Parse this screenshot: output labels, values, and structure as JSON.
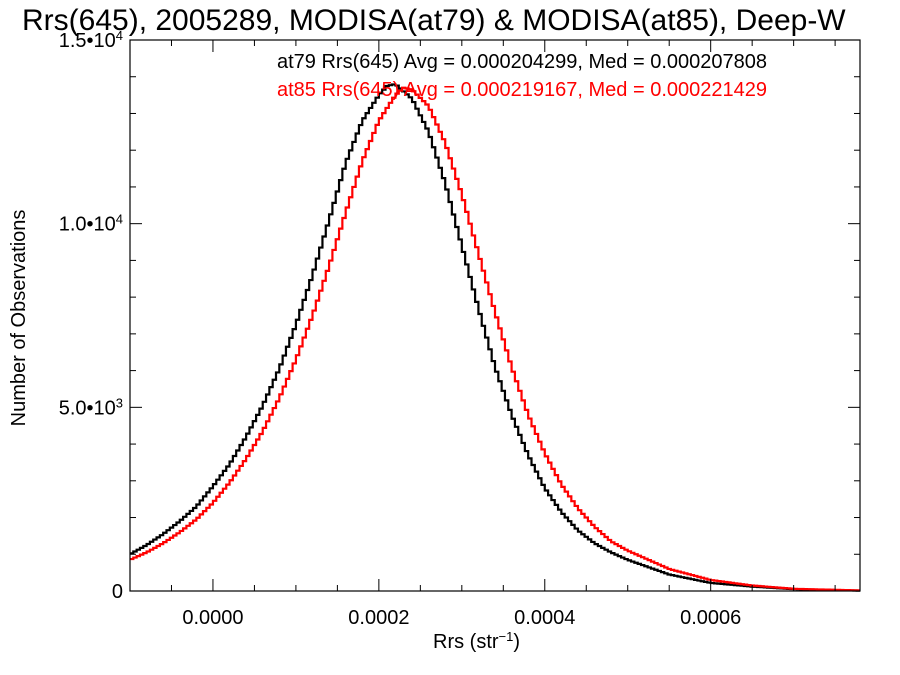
{
  "chart_data": {
    "type": "line",
    "title": "Rrs(645), 2005289, MODISA(at79) & MODISA(at85), Deep-W",
    "xlabel_main": "Rrs (str",
    "xlabel_sup": "−1",
    "xlabel_close": ")",
    "ylabel": "Number of Observations",
    "xlim": [
      -0.0001,
      0.00078
    ],
    "ylim": [
      0,
      15000
    ],
    "x_ticks": [
      {
        "value": 0.0,
        "label": "0.0000"
      },
      {
        "value": 0.0002,
        "label": "0.0002"
      },
      {
        "value": 0.0004,
        "label": "0.0004"
      },
      {
        "value": 0.0006,
        "label": "0.0006"
      }
    ],
    "y_ticks": [
      {
        "value": 0,
        "mant": "0",
        "exp": ""
      },
      {
        "value": 5000,
        "mant": "5.0•10",
        "exp": "3"
      },
      {
        "value": 10000,
        "mant": "1.0•10",
        "exp": "4"
      },
      {
        "value": 15000,
        "mant": "1.5•10",
        "exp": "4"
      }
    ],
    "legend": [
      {
        "text": "at79 Rrs(645) Avg = 0.000204299, Med = 0.000207808",
        "color": "#000000"
      },
      {
        "text": "at85 Rrs(645) Avg = 0.000219167, Med = 0.000221429",
        "color": "#ff0000"
      }
    ],
    "series": [
      {
        "color": "#000000",
        "x": [
          -0.0001,
          -8e-05,
          -6e-05,
          -4e-05,
          -2e-05,
          0.0,
          2e-05,
          4e-05,
          6e-05,
          8e-05,
          0.0001,
          0.00012,
          0.00014,
          0.00016,
          0.00018,
          0.0002,
          0.00021,
          0.00022,
          0.00024,
          0.00026,
          0.00028,
          0.0003,
          0.00032,
          0.00034,
          0.00036,
          0.00038,
          0.0004,
          0.00042,
          0.00044,
          0.00046,
          0.00048,
          0.0005,
          0.00055,
          0.0006,
          0.00065,
          0.0007,
          0.00078
        ],
        "y": [
          1000,
          1250,
          1550,
          1900,
          2300,
          2850,
          3450,
          4200,
          5050,
          6050,
          7250,
          8600,
          10100,
          11650,
          12800,
          13500,
          13750,
          13800,
          13400,
          12500,
          11100,
          9400,
          7700,
          6100,
          4800,
          3700,
          2800,
          2150,
          1650,
          1300,
          1050,
          850,
          450,
          220,
          120,
          50,
          10
        ]
      },
      {
        "color": "#ff0000",
        "x": [
          -0.0001,
          -8e-05,
          -6e-05,
          -4e-05,
          -2e-05,
          0.0,
          2e-05,
          4e-05,
          6e-05,
          8e-05,
          0.0001,
          0.00012,
          0.00014,
          0.00016,
          0.00018,
          0.0002,
          0.00022,
          0.00023,
          0.00024,
          0.00026,
          0.00028,
          0.0003,
          0.00032,
          0.00034,
          0.00036,
          0.00038,
          0.0004,
          0.00042,
          0.00044,
          0.00046,
          0.00048,
          0.0005,
          0.00055,
          0.0006,
          0.00065,
          0.0007,
          0.00078
        ],
        "y": [
          850,
          1050,
          1300,
          1600,
          1950,
          2400,
          2950,
          3600,
          4350,
          5250,
          6300,
          7500,
          8850,
          10300,
          11700,
          12800,
          13500,
          13700,
          13650,
          13200,
          12200,
          10800,
          9200,
          7600,
          6100,
          4800,
          3750,
          2900,
          2250,
          1750,
          1350,
          1100,
          600,
          300,
          150,
          60,
          15
        ]
      }
    ]
  }
}
